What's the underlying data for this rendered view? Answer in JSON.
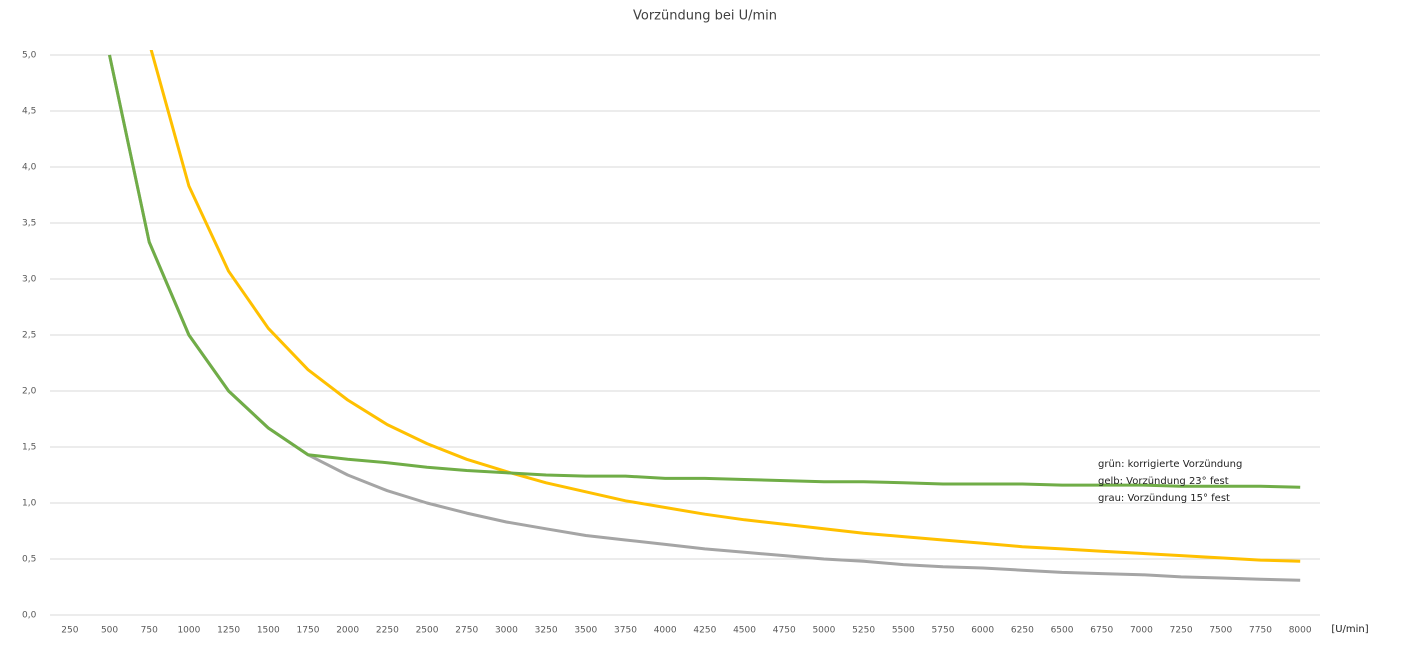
{
  "chart_data": {
    "type": "line",
    "title": "Vorzündung bei U/min",
    "x_label": "[U/min]",
    "categories": [
      250,
      500,
      750,
      1000,
      1250,
      1500,
      1750,
      2000,
      2250,
      2500,
      2750,
      3000,
      3250,
      3500,
      3750,
      4000,
      4250,
      4500,
      4750,
      5000,
      5250,
      5500,
      5750,
      6000,
      6250,
      6500,
      6750,
      7000,
      7250,
      7500,
      7750,
      8000
    ],
    "series": [
      {
        "color": "#a5a5a5",
        "values": [
          null,
          5.0,
          3.33,
          2.5,
          2.0,
          1.67,
          1.43,
          1.25,
          1.11,
          1.0,
          0.91,
          0.83,
          0.77,
          0.71,
          0.67,
          0.63,
          0.59,
          0.56,
          0.53,
          0.5,
          0.48,
          0.45,
          0.43,
          0.42,
          0.4,
          0.38,
          0.37,
          0.36,
          0.34,
          0.33,
          0.32,
          0.31
        ]
      },
      {
        "color": "#ffc000",
        "values": [
          null,
          null,
          5.11,
          3.83,
          3.07,
          2.56,
          2.19,
          1.92,
          1.7,
          1.53,
          1.39,
          1.28,
          1.18,
          1.1,
          1.02,
          0.96,
          0.9,
          0.85,
          0.81,
          0.77,
          0.73,
          0.7,
          0.67,
          0.64,
          0.61,
          0.59,
          0.57,
          0.55,
          0.53,
          0.51,
          0.49,
          0.48
        ]
      },
      {
        "color": "#70ad47",
        "values": [
          null,
          5.0,
          3.33,
          2.5,
          2.0,
          1.67,
          1.43,
          1.39,
          1.36,
          1.32,
          1.29,
          1.27,
          1.25,
          1.24,
          1.24,
          1.22,
          1.22,
          1.21,
          1.2,
          1.19,
          1.19,
          1.18,
          1.17,
          1.17,
          1.17,
          1.16,
          1.16,
          1.16,
          1.15,
          1.15,
          1.15,
          1.14
        ]
      }
    ],
    "annotations": [
      "grün: korrigierte Vorzündung",
      "gelb: Vorzündung 23° fest",
      "grau: Vorzündung 15° fest"
    ],
    "ylim": [
      0,
      5
    ],
    "yticks": [
      {
        "value": 0,
        "label": "0,0"
      },
      {
        "value": 0.5,
        "label": "0,5"
      },
      {
        "value": 1,
        "label": "1,0"
      },
      {
        "value": 1.5,
        "label": "1,5"
      },
      {
        "value": 2,
        "label": "2,0"
      },
      {
        "value": 2.5,
        "label": "2,5"
      },
      {
        "value": 3,
        "label": "3,0"
      },
      {
        "value": 3.5,
        "label": "3,5"
      },
      {
        "value": 4,
        "label": "4,0"
      },
      {
        "value": 4.5,
        "label": "4,5"
      },
      {
        "value": 5,
        "label": "5,0"
      }
    ],
    "grid": true
  }
}
